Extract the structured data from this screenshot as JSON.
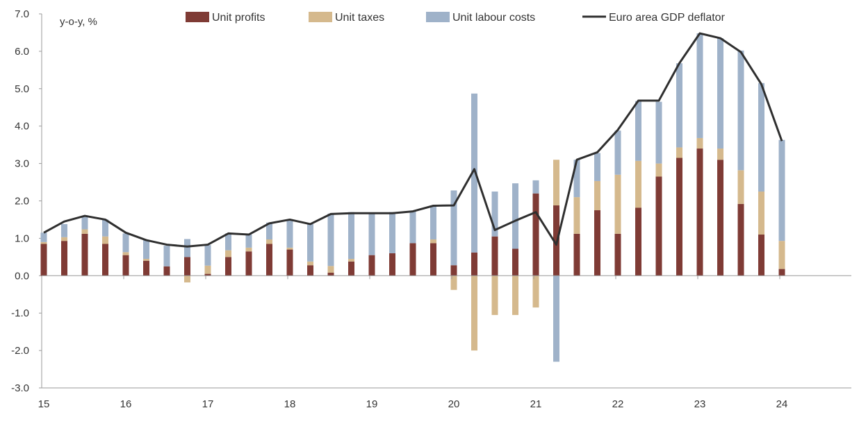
{
  "chart_data": {
    "type": "bar",
    "stacked": true,
    "unit_label": "y-o-y, %",
    "ylim": [
      -3.0,
      7.0
    ],
    "y_ticks": [
      "-3.0",
      "-2.0",
      "-1.0",
      "0.0",
      "1.0",
      "2.0",
      "3.0",
      "4.0",
      "5.0",
      "6.0",
      "7.0"
    ],
    "x_tick_labels": [
      "15",
      "16",
      "17",
      "18",
      "19",
      "20",
      "21",
      "22",
      "23",
      "24"
    ],
    "grid": false,
    "legend_placement": "top",
    "periods": [
      "2015Q1",
      "2015Q2",
      "2015Q3",
      "2015Q4",
      "2016Q1",
      "2016Q2",
      "2016Q3",
      "2016Q4",
      "2017Q1",
      "2017Q2",
      "2017Q3",
      "2017Q4",
      "2018Q1",
      "2018Q2",
      "2018Q3",
      "2018Q4",
      "2019Q1",
      "2019Q2",
      "2019Q3",
      "2019Q4",
      "2020Q1",
      "2020Q2",
      "2020Q3",
      "2020Q4",
      "2021Q1",
      "2021Q2",
      "2021Q3",
      "2021Q4",
      "2022Q1",
      "2022Q2",
      "2022Q3",
      "2022Q4",
      "2023Q1",
      "2023Q2",
      "2023Q3",
      "2023Q4",
      "2024Q1"
    ],
    "series": [
      {
        "name": "Unit profits",
        "kind": "bar",
        "color": "#7f3b35",
        "values": [
          0.85,
          0.93,
          1.12,
          0.85,
          0.55,
          0.4,
          0.25,
          0.5,
          0.05,
          0.5,
          0.65,
          0.85,
          0.7,
          0.28,
          0.08,
          0.38,
          0.55,
          0.6,
          0.87,
          0.87,
          0.28,
          0.62,
          1.05,
          0.72,
          2.2,
          1.88,
          1.12,
          1.75,
          1.12,
          1.82,
          2.65,
          3.15,
          3.4,
          3.1,
          1.92,
          1.1,
          0.18
        ]
      },
      {
        "name": "Unit taxes",
        "kind": "bar",
        "color": "#d5b98d",
        "values": [
          0.05,
          0.1,
          0.12,
          0.2,
          0.08,
          0.05,
          0.0,
          -0.18,
          0.22,
          0.18,
          0.1,
          0.12,
          0.05,
          0.1,
          0.18,
          0.07,
          0.0,
          0.0,
          0.0,
          0.1,
          -0.38,
          -2.0,
          -1.05,
          -1.05,
          -0.85,
          1.22,
          0.98,
          0.78,
          1.58,
          1.25,
          0.35,
          0.28,
          0.28,
          0.3,
          0.9,
          1.15,
          0.75
        ]
      },
      {
        "name": "Unit labour costs",
        "kind": "bar",
        "color": "#9fb2c9",
        "values": [
          0.25,
          0.35,
          0.35,
          0.45,
          0.5,
          0.5,
          0.55,
          0.48,
          0.55,
          0.45,
          0.35,
          0.45,
          0.75,
          1.0,
          1.4,
          1.25,
          1.12,
          1.1,
          0.85,
          0.9,
          2.0,
          4.25,
          1.2,
          1.75,
          0.35,
          -2.3,
          1.0,
          0.75,
          1.18,
          1.6,
          1.65,
          2.25,
          2.8,
          2.95,
          3.2,
          2.9,
          2.7
        ]
      },
      {
        "name": "Euro area GDP deflator",
        "kind": "line",
        "color": "#2f2f2f",
        "values": [
          1.15,
          1.45,
          1.6,
          1.5,
          1.15,
          0.95,
          0.83,
          0.78,
          0.83,
          1.13,
          1.1,
          1.4,
          1.5,
          1.38,
          1.65,
          1.67,
          1.67,
          1.67,
          1.72,
          1.87,
          1.88,
          2.85,
          1.22,
          1.47,
          1.7,
          0.83,
          3.1,
          3.3,
          3.9,
          4.68,
          4.68,
          5.68,
          6.48,
          6.35,
          5.98,
          5.12,
          3.6
        ]
      }
    ]
  }
}
